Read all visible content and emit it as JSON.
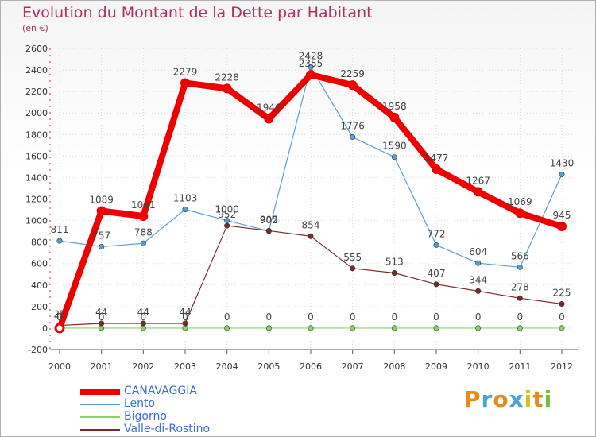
{
  "title": "Evolution du Montant de la Dette par Habitant",
  "subtitle": "(en €)",
  "logo": {
    "letters": [
      "P",
      "r",
      "o",
      "x",
      "i",
      "t",
      "i"
    ],
    "colors": [
      "#e58a1f",
      "#4aa3df",
      "#e58a1f",
      "#4aa3df",
      "#d2c21a",
      "#e58a1f",
      "#6cbf3a"
    ]
  },
  "chart_data": {
    "type": "line",
    "title": "Evolution du Montant de la Dette par Habitant",
    "subtitle": "(en €)",
    "xlabel": "",
    "ylabel": "",
    "x": [
      "2000",
      "2001",
      "2002",
      "2003",
      "2004",
      "2005",
      "2006",
      "2007",
      "2008",
      "2009",
      "2010",
      "2011",
      "2012"
    ],
    "ylim": [
      -200,
      2600
    ],
    "yticks": [
      -200,
      0,
      200,
      400,
      600,
      800,
      1000,
      1200,
      1400,
      1600,
      1800,
      2000,
      2200,
      2400,
      2600
    ],
    "grid": true,
    "legend_position": "bottom-left",
    "series": [
      {
        "name": "CANAVAGGIA",
        "color": "#ee0000",
        "width": 8,
        "values": [
          0,
          1089,
          1041,
          2279,
          2228,
          1946,
          2355,
          2259,
          1958,
          1477,
          1267,
          1069,
          945
        ],
        "labels": [
          "0",
          "1089",
          "1041",
          "2279",
          "2228",
          "1946",
          "2355",
          "2259",
          "1958",
          "1477",
          "1267",
          "1069",
          "945"
        ]
      },
      {
        "name": "Lento",
        "color": "#5a9fd4",
        "width": 1.2,
        "values": [
          811,
          757,
          788,
          1103,
          1000,
          902,
          2428,
          1776,
          1590,
          772,
          604,
          566,
          1430
        ],
        "labels": [
          "811",
          "757",
          "788",
          "1103",
          "1000",
          "902",
          "2428",
          "1776",
          "1590",
          "772",
          "604",
          "566",
          "1430"
        ]
      },
      {
        "name": "Bigorno",
        "color": "#8ad35e",
        "width": 1.2,
        "values": [
          0,
          0,
          0,
          0,
          0,
          0,
          0,
          0,
          0,
          0,
          0,
          0,
          0
        ],
        "labels": [
          "0",
          "0",
          "0",
          "0",
          "0",
          "0",
          "0",
          "0",
          "0",
          "0",
          "0",
          "0",
          "0"
        ]
      },
      {
        "name": "Valle-di-Rostino",
        "color": "#7a2a2a",
        "width": 1.2,
        "values": [
          25,
          44,
          44,
          44,
          952,
          905,
          854,
          555,
          513,
          407,
          344,
          278,
          225
        ],
        "labels": [
          "25",
          "44",
          "44",
          "44",
          "952",
          "905",
          "854",
          "555",
          "513",
          "407",
          "344",
          "278",
          "225"
        ]
      }
    ]
  }
}
